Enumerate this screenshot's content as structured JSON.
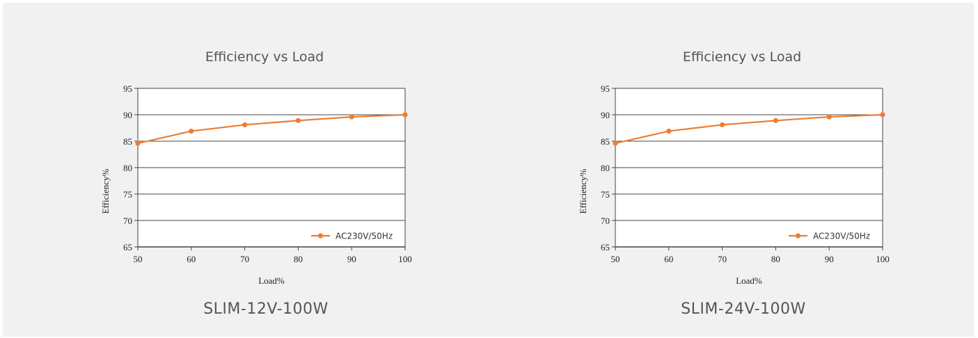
{
  "chart_data": [
    {
      "type": "line",
      "title": "Efficiency vs Load",
      "xlabel": "Load%",
      "ylabel": "Efficiency%",
      "x": [
        50,
        60,
        70,
        80,
        90,
        100
      ],
      "xticks": [
        "50",
        "60",
        "70",
        "80",
        "90",
        "100"
      ],
      "yticks": [
        "65",
        "70",
        "75",
        "80",
        "85",
        "90",
        "95"
      ],
      "xlim": [
        50,
        100
      ],
      "ylim": [
        65,
        95
      ],
      "grid": "horizontal",
      "legend": "bottom-right",
      "series": [
        {
          "name": "AC230V/50Hz",
          "color": "#ed7d31",
          "values": [
            84.6,
            86.9,
            88.1,
            88.9,
            89.6,
            90.0
          ]
        }
      ],
      "caption": "SLIM-12V-100W"
    },
    {
      "type": "line",
      "title": "Efficiency vs Load",
      "xlabel": "Load%",
      "ylabel": "Efficiency%",
      "x": [
        50,
        60,
        70,
        80,
        90,
        100
      ],
      "xticks": [
        "50",
        "60",
        "70",
        "80",
        "90",
        "100"
      ],
      "yticks": [
        "65",
        "70",
        "75",
        "80",
        "85",
        "90",
        "95"
      ],
      "xlim": [
        50,
        100
      ],
      "ylim": [
        65,
        95
      ],
      "grid": "horizontal",
      "legend": "bottom-right",
      "series": [
        {
          "name": "AC230V/50Hz",
          "color": "#ed7d31",
          "values": [
            84.6,
            86.9,
            88.1,
            88.9,
            89.6,
            90.0
          ]
        }
      ],
      "caption": "SLIM-24V-100W"
    }
  ]
}
